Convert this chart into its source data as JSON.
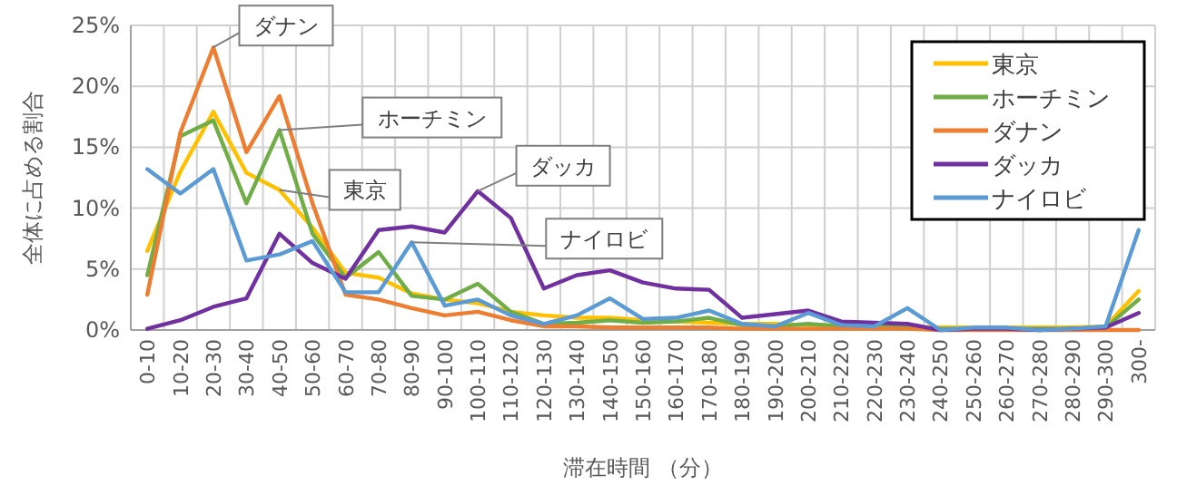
{
  "chart_data": {
    "type": "line",
    "ylabel": "全体に占める割合",
    "xlabel": "滞在時間 （分）",
    "categories": [
      "0-10",
      "10-20",
      "20-30",
      "30-40",
      "40-50",
      "50-60",
      "60-70",
      "70-80",
      "80-90",
      "90-100",
      "100-110",
      "110-120",
      "120-130",
      "130-140",
      "140-150",
      "150-160",
      "160-170",
      "170-180",
      "180-190",
      "190-200",
      "200-210",
      "210-220",
      "220-230",
      "230-240",
      "240-250",
      "250-260",
      "260-270",
      "270-280",
      "280-290",
      "290-300",
      "300-"
    ],
    "series": [
      {
        "name": "東京",
        "color": "#ffc000",
        "values": [
          6.5,
          13,
          17.9,
          12.9,
          11.5,
          8.4,
          4.7,
          4.3,
          3,
          2.5,
          2.2,
          1.5,
          1.2,
          1,
          1,
          0.8,
          0.7,
          0.6,
          0.5,
          0.5,
          0.4,
          0.4,
          0.3,
          0.3,
          0.2,
          0.2,
          0.2,
          0.2,
          0.2,
          0.3,
          3.2
        ]
      },
      {
        "name": "ホーチミン",
        "color": "#70ad47",
        "values": [
          4.5,
          15.9,
          17.2,
          10.4,
          16.4,
          7.9,
          4.3,
          6.4,
          2.8,
          2.5,
          3.8,
          1.5,
          0.5,
          0.6,
          0.8,
          0.6,
          0.7,
          1,
          0.4,
          0.3,
          0.5,
          0.3,
          0.3,
          0.2,
          0.1,
          0.1,
          0.1,
          0.1,
          0.1,
          0.2,
          2.5
        ]
      },
      {
        "name": "ダナン",
        "color": "#ed7d31",
        "values": [
          2.9,
          16.2,
          23.2,
          14.6,
          19.2,
          10.4,
          2.9,
          2.5,
          1.8,
          1.2,
          1.5,
          0.8,
          0.3,
          0.3,
          0.2,
          0.2,
          0.2,
          0.2,
          0.1,
          0.1,
          0.1,
          0.1,
          0.1,
          0.1,
          0,
          0,
          0,
          0,
          0,
          0,
          0
        ]
      },
      {
        "name": "ダッカ",
        "color": "#7030a0",
        "values": [
          0.1,
          0.8,
          1.9,
          2.6,
          7.9,
          5.5,
          4.2,
          8.2,
          8.5,
          8,
          11.4,
          9.2,
          3.4,
          4.5,
          4.9,
          3.9,
          3.4,
          3.3,
          1,
          1.3,
          1.6,
          0.7,
          0.6,
          0.5,
          0,
          0.1,
          0.1,
          0,
          0.1,
          0.2,
          1.4
        ]
      },
      {
        "name": "ナイロビ",
        "color": "#5b9bd5",
        "values": [
          13.2,
          11.2,
          13.2,
          5.7,
          6.2,
          7.3,
          3.1,
          3.1,
          7.2,
          2,
          2.5,
          1.2,
          0.5,
          1.2,
          2.6,
          0.9,
          1,
          1.6,
          0.5,
          0.3,
          1.4,
          0.4,
          0.3,
          1.8,
          0,
          0.2,
          0.2,
          0,
          0.1,
          0.3,
          8.2
        ]
      }
    ],
    "ylim": [
      0,
      25
    ],
    "yticks": [
      {
        "value": 0,
        "label": "0%"
      },
      {
        "value": 5,
        "label": "5%"
      },
      {
        "value": 10,
        "label": "10%"
      },
      {
        "value": 15,
        "label": "15%"
      },
      {
        "value": 20,
        "label": "20%"
      },
      {
        "value": 25,
        "label": "25%"
      }
    ],
    "annotations": [
      {
        "text": "ダナン",
        "x": "20-30",
        "y": 23.2
      },
      {
        "text": "ホーチミン",
        "x": "40-50",
        "y": 16.4
      },
      {
        "text": "東京",
        "x": "40-50",
        "y": 11.5
      },
      {
        "text": "ダッカ",
        "x": "100-110",
        "y": 11.4
      },
      {
        "text": "ナイロビ",
        "x": "80-90",
        "y": 7.2
      }
    ],
    "grid": true,
    "legend": "top right",
    "marker": "none",
    "line_style": "solid"
  }
}
